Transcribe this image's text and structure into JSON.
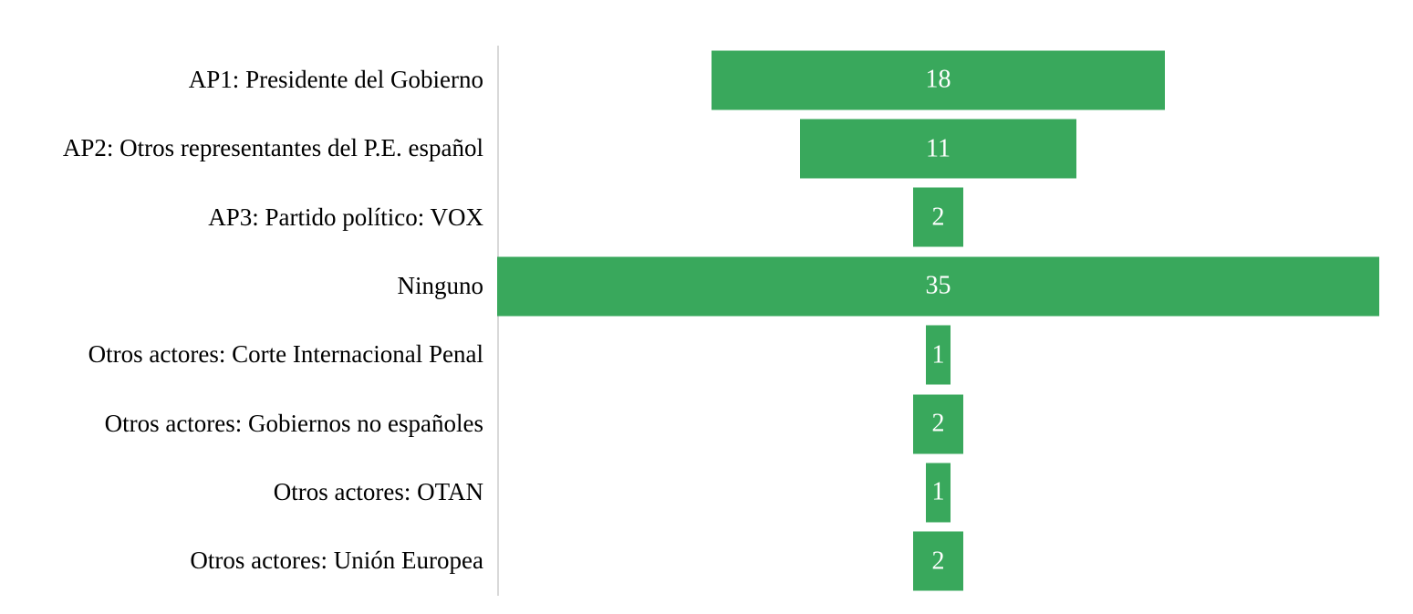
{
  "chart_data": {
    "type": "bar",
    "orientation": "horizontal",
    "alignment": "center",
    "title": "",
    "xlabel": "",
    "ylabel": "",
    "grid": false,
    "legend": false,
    "value_labels_inside_bars": true,
    "max_value": 35,
    "categories": [
      "AP1: Presidente del Gobierno",
      "AP2: Otros representantes del P.E. español",
      "AP3: Partido político: VOX",
      "Ninguno",
      "Otros actores: Corte Internacional Penal",
      "Otros actores: Gobiernos no españoles",
      "Otros actores: OTAN",
      "Otros actores: Unión Europea"
    ],
    "values": [
      18,
      11,
      2,
      35,
      1,
      2,
      1,
      2
    ],
    "colors": {
      "bar_fill": "#39a85c",
      "value_label": "#ffffff",
      "category_label": "#000000",
      "axis_line": "#d9d9d9",
      "background": "#ffffff"
    }
  }
}
